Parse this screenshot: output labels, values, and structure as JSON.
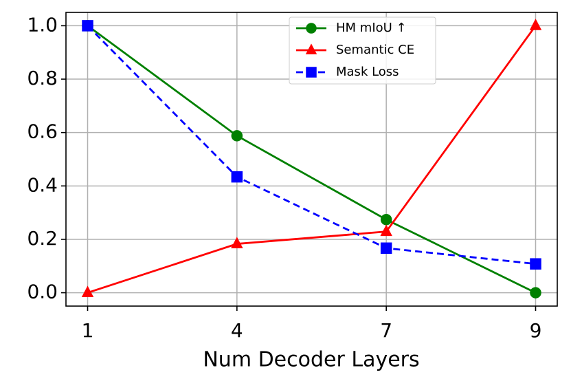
{
  "chart_data": {
    "type": "line",
    "xlabel": "Num Decoder Layers",
    "categories": [
      "1",
      "4",
      "7",
      "9"
    ],
    "series": [
      {
        "name": "HM mIoU  ↑",
        "color": "#008000",
        "marker": "circle",
        "linestyle": "solid",
        "values": [
          1.0,
          0.588,
          0.274,
          0.0
        ]
      },
      {
        "name": "Semantic CE",
        "color": "#ff0000",
        "marker": "triangle",
        "linestyle": "solid",
        "values": [
          0.0,
          0.183,
          0.229,
          1.0
        ]
      },
      {
        "name": "Mask Loss",
        "color": "#0000ff",
        "marker": "square",
        "linestyle": "dashed",
        "values": [
          1.0,
          0.434,
          0.167,
          0.108
        ]
      }
    ],
    "ylim": [
      -0.05,
      1.05
    ],
    "yticks": [
      {
        "value": 0,
        "label": "0.0"
      },
      0.2,
      0.4,
      0.6,
      0.8,
      {
        "value": 1,
        "label": "1.0"
      }
    ],
    "grid": true,
    "legend": "upper center"
  }
}
